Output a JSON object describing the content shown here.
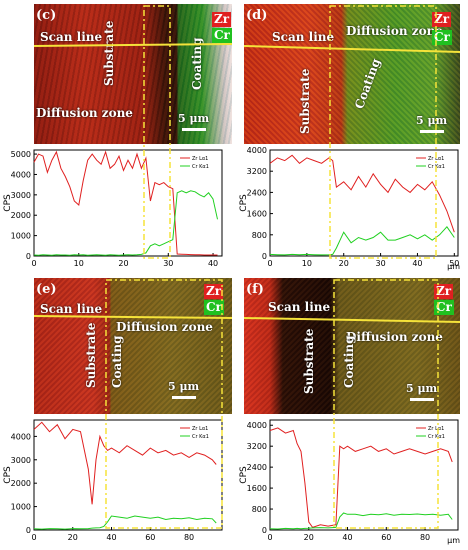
{
  "figure": {
    "legend_zr": "Zr",
    "legend_cr": "Cr",
    "scale": "5 μm",
    "scan_line": "Scan line",
    "substrate": "Substrate",
    "coating": "Coating",
    "diffusion_zone": "Diffusion zone",
    "colors": {
      "zr": "#e02020",
      "cr": "#20d020",
      "guide": "#f5e33a"
    }
  },
  "panels": [
    {
      "tag": "(c)"
    },
    {
      "tag": "(d)"
    },
    {
      "tag": "(e)"
    },
    {
      "tag": "(f)"
    }
  ],
  "chart_data": [
    {
      "type": "line",
      "ylabel": "CPS",
      "xlabel": "",
      "xunit": "",
      "xlim": [
        0,
        42
      ],
      "ylim": [
        0,
        5200
      ],
      "xticks": [
        0,
        10,
        20,
        30,
        40
      ],
      "yticks": [
        0,
        1000,
        2000,
        3000,
        4000,
        5000
      ],
      "legend": [
        "Zr Lα1",
        "Cr Kα1"
      ],
      "series": [
        {
          "name": "Zr Lα1",
          "x": [
            0,
            1,
            2,
            3,
            4,
            5,
            6,
            7,
            8,
            9,
            10,
            11,
            12,
            13,
            14,
            15,
            16,
            17,
            18,
            19,
            20,
            21,
            22,
            23,
            24,
            25,
            26,
            27,
            28,
            29,
            30,
            31,
            32,
            33,
            34,
            35,
            36,
            37,
            38,
            39,
            40,
            41
          ],
          "values": [
            4600,
            5000,
            4900,
            4100,
            4700,
            5100,
            4300,
            3900,
            3400,
            2700,
            2500,
            3700,
            4700,
            5000,
            4700,
            4500,
            5100,
            4300,
            4500,
            4900,
            4200,
            4700,
            4300,
            5000,
            4300,
            4800,
            2700,
            3600,
            3500,
            3600,
            3400,
            3300,
            100,
            90,
            80,
            70,
            60,
            60,
            50,
            50,
            50,
            50
          ]
        },
        {
          "name": "Cr Kα1",
          "x": [
            0,
            1,
            2,
            3,
            4,
            5,
            6,
            7,
            8,
            9,
            10,
            11,
            12,
            13,
            14,
            15,
            16,
            17,
            18,
            19,
            20,
            21,
            22,
            23,
            24,
            25,
            26,
            27,
            28,
            29,
            30,
            31,
            32,
            33,
            34,
            35,
            36,
            37,
            38,
            39,
            40,
            41
          ],
          "values": [
            50,
            40,
            60,
            50,
            40,
            60,
            50,
            50,
            40,
            60,
            50,
            60,
            40,
            50,
            60,
            50,
            40,
            60,
            50,
            40,
            50,
            60,
            50,
            60,
            80,
            150,
            500,
            600,
            500,
            600,
            700,
            800,
            3100,
            3200,
            3100,
            3200,
            3150,
            3000,
            2900,
            3100,
            2800,
            1800
          ]
        }
      ]
    },
    {
      "type": "line",
      "ylabel": "CPS",
      "xlabel": "",
      "xunit": "μm",
      "xlim": [
        0,
        51
      ],
      "ylim": [
        0,
        4000
      ],
      "xticks": [
        0,
        10,
        20,
        30,
        40,
        50
      ],
      "yticks": [
        0,
        800,
        1600,
        2400,
        3200,
        4000
      ],
      "legend": [
        "Zr Lα1",
        "Cr Kα1"
      ],
      "series": [
        {
          "name": "Zr Lα1",
          "x": [
            0,
            2,
            4,
            6,
            8,
            10,
            12,
            14,
            16,
            17,
            18,
            20,
            22,
            24,
            26,
            28,
            30,
            32,
            34,
            36,
            38,
            40,
            42,
            44,
            46,
            48,
            50
          ],
          "values": [
            3500,
            3700,
            3600,
            3800,
            3500,
            3700,
            3600,
            3500,
            3700,
            3600,
            2600,
            2800,
            2500,
            3000,
            2600,
            3100,
            2700,
            2400,
            2900,
            2600,
            2400,
            2700,
            2500,
            2800,
            2300,
            1700,
            900
          ]
        },
        {
          "name": "Cr Kα1",
          "x": [
            0,
            2,
            4,
            6,
            8,
            10,
            12,
            14,
            16,
            17,
            18,
            20,
            22,
            24,
            26,
            28,
            30,
            32,
            34,
            36,
            38,
            40,
            42,
            44,
            46,
            48,
            50
          ],
          "values": [
            60,
            50,
            40,
            60,
            50,
            60,
            50,
            40,
            50,
            60,
            300,
            900,
            500,
            700,
            600,
            700,
            900,
            600,
            600,
            700,
            800,
            650,
            800,
            600,
            800,
            1100,
            700
          ]
        }
      ]
    },
    {
      "type": "line",
      "ylabel": "CPS",
      "xlabel": "",
      "xunit": "",
      "xlim": [
        0,
        97
      ],
      "ylim": [
        0,
        4700
      ],
      "xticks": [
        0,
        20,
        40,
        60,
        80
      ],
      "yticks": [
        0,
        1000,
        2000,
        3000,
        4000
      ],
      "legend": [
        "Zr Lα1",
        "Cr Kα1"
      ],
      "series": [
        {
          "name": "Zr Lα1",
          "x": [
            0,
            4,
            8,
            12,
            16,
            20,
            24,
            28,
            30,
            32,
            34,
            36,
            38,
            40,
            44,
            48,
            52,
            56,
            60,
            64,
            68,
            72,
            76,
            80,
            84,
            88,
            92,
            94
          ],
          "values": [
            4300,
            4600,
            4200,
            4500,
            3900,
            4300,
            4200,
            2600,
            1100,
            3000,
            4000,
            3600,
            3400,
            3500,
            3300,
            3600,
            3400,
            3200,
            3500,
            3300,
            3400,
            3200,
            3300,
            3100,
            3300,
            3200,
            3000,
            2800
          ]
        },
        {
          "name": "Cr Kα1",
          "x": [
            0,
            4,
            8,
            12,
            16,
            20,
            24,
            28,
            30,
            32,
            34,
            36,
            38,
            40,
            44,
            48,
            52,
            56,
            60,
            64,
            68,
            72,
            76,
            80,
            84,
            88,
            92,
            94
          ],
          "values": [
            50,
            40,
            60,
            50,
            40,
            60,
            50,
            60,
            80,
            90,
            100,
            150,
            350,
            600,
            550,
            500,
            600,
            550,
            500,
            550,
            450,
            500,
            480,
            520,
            450,
            500,
            480,
            300
          ]
        }
      ]
    },
    {
      "type": "line",
      "ylabel": "CPS",
      "xlabel": "",
      "xunit": "μm",
      "xlim": [
        0,
        97
      ],
      "ylim": [
        0,
        4200
      ],
      "xticks": [
        0,
        20,
        40,
        60,
        80
      ],
      "yticks": [
        0,
        800,
        1600,
        2400,
        3200,
        4000
      ],
      "legend": [
        "Zr Lα1",
        "Cr Kα1"
      ],
      "series": [
        {
          "name": "Zr Lα1",
          "x": [
            0,
            4,
            8,
            12,
            14,
            16,
            18,
            20,
            22,
            26,
            30,
            34,
            36,
            38,
            40,
            44,
            48,
            52,
            56,
            60,
            64,
            68,
            72,
            76,
            80,
            84,
            88,
            92,
            94
          ],
          "values": [
            3800,
            3900,
            3700,
            3800,
            3300,
            3000,
            1800,
            300,
            100,
            200,
            150,
            200,
            3200,
            3100,
            3200,
            3000,
            3100,
            3200,
            3000,
            3100,
            2900,
            3000,
            3100,
            3000,
            2900,
            3000,
            3100,
            3000,
            2600
          ]
        },
        {
          "name": "Cr Kα1",
          "x": [
            0,
            4,
            8,
            12,
            14,
            16,
            18,
            20,
            22,
            26,
            30,
            34,
            36,
            38,
            40,
            44,
            48,
            52,
            56,
            60,
            64,
            68,
            72,
            76,
            80,
            84,
            88,
            92,
            94
          ],
          "values": [
            50,
            40,
            60,
            50,
            60,
            50,
            60,
            70,
            80,
            90,
            80,
            100,
            500,
            650,
            600,
            600,
            550,
            600,
            580,
            620,
            560,
            600,
            590,
            610,
            580,
            600,
            560,
            600,
            400
          ]
        }
      ]
    }
  ]
}
